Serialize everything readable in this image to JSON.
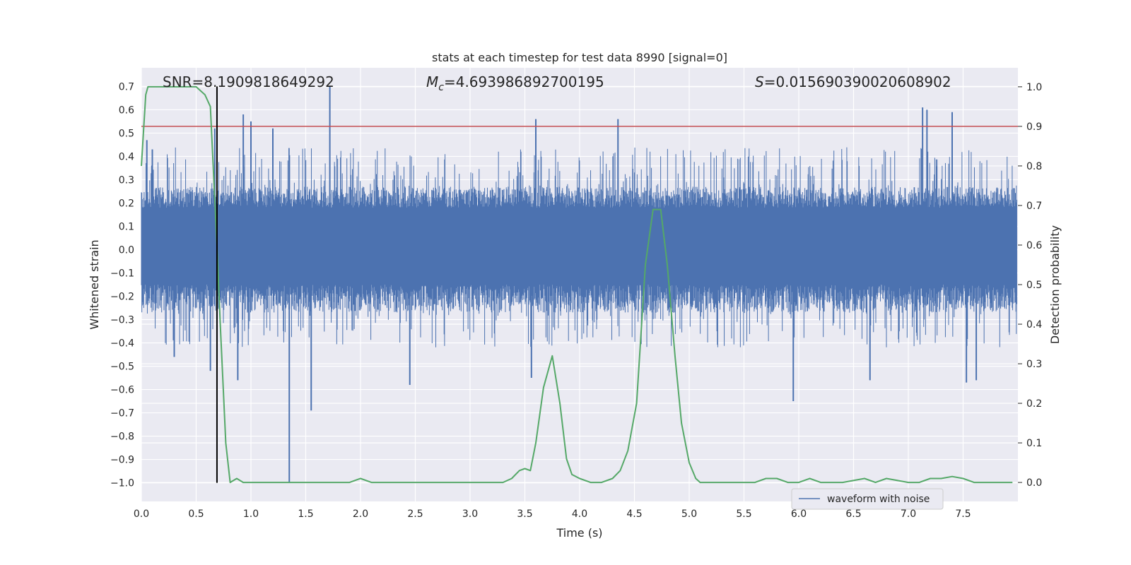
{
  "chart_data": {
    "type": "line",
    "title": "stats at each timestep for test data 8990 [signal=0]",
    "xlabel": "Time (s)",
    "ylabel_left": "Whitened strain",
    "ylabel_right": "Detection probability",
    "xlim": [
      0.0,
      8.0
    ],
    "ylim_left": [
      -1.08,
      0.78
    ],
    "ylim_right": [
      -0.048,
      1.048
    ],
    "x_ticks": [
      0.0,
      0.5,
      1.0,
      1.5,
      2.0,
      2.5,
      3.0,
      3.5,
      4.0,
      4.5,
      5.0,
      5.5,
      6.0,
      6.5,
      7.0,
      7.5
    ],
    "x_tick_labels": [
      "0.0",
      "0.5",
      "1.0",
      "1.5",
      "2.0",
      "2.5",
      "3.0",
      "3.5",
      "4.0",
      "4.5",
      "5.0",
      "5.5",
      "6.0",
      "6.5",
      "7.0",
      "7.5"
    ],
    "y_left_ticks": [
      0.7,
      0.6,
      0.5,
      0.4,
      0.3,
      0.2,
      0.1,
      0.0,
      -0.1,
      -0.2,
      -0.3,
      -0.4,
      -0.5,
      -0.6,
      -0.7,
      -0.8,
      -0.9,
      -1.0
    ],
    "y_left_tick_labels": [
      "0.7",
      "0.6",
      "0.5",
      "0.4",
      "0.3",
      "0.2",
      "0.1",
      "0.0",
      "−0.1",
      "−0.2",
      "−0.3",
      "−0.4",
      "−0.5",
      "−0.6",
      "−0.7",
      "−0.8",
      "−0.9",
      "−1.0"
    ],
    "y_right_ticks": [
      1.0,
      0.9,
      0.8,
      0.7,
      0.6,
      0.5,
      0.4,
      0.3,
      0.2,
      0.1,
      0.0
    ],
    "y_right_tick_labels": [
      "1.0",
      "0.9",
      "0.8",
      "0.7",
      "0.6",
      "0.5",
      "0.4",
      "0.3",
      "0.2",
      "0.1",
      "0.0"
    ],
    "grid": true,
    "annotations": {
      "snr": "SNR=8.1909818649292",
      "mc_symbol": "M",
      "mc_subscript": "c",
      "mc_value": "=4.693986892700195",
      "s_symbol": "S",
      "s_value": "=0.015690390020608902"
    },
    "threshold": {
      "value": 0.9,
      "axis": "right",
      "color": "#c44e52"
    },
    "vertical_marker": {
      "x": 0.69,
      "y_top": 0.7,
      "y_bottom": -1.0,
      "color": "#000000"
    },
    "series": [
      {
        "name": "waveform with noise",
        "axis": "left",
        "color": "#4c72b0",
        "legend": true,
        "band_min": -0.15,
        "band_max": 0.18,
        "spikes": [
          {
            "x": 0.05,
            "y": 0.47
          },
          {
            "x": 0.1,
            "y": 0.43
          },
          {
            "x": 0.3,
            "y": -0.46
          },
          {
            "x": 0.63,
            "y": -0.52
          },
          {
            "x": 0.67,
            "y": 0.52
          },
          {
            "x": 0.88,
            "y": -0.56
          },
          {
            "x": 0.93,
            "y": 0.58
          },
          {
            "x": 1.0,
            "y": 0.55
          },
          {
            "x": 1.2,
            "y": 0.52
          },
          {
            "x": 1.35,
            "y": -1.0
          },
          {
            "x": 1.55,
            "y": -0.69
          },
          {
            "x": 1.72,
            "y": 0.7
          },
          {
            "x": 2.45,
            "y": -0.58
          },
          {
            "x": 3.6,
            "y": 0.56
          },
          {
            "x": 3.56,
            "y": -0.55
          },
          {
            "x": 4.35,
            "y": 0.56
          },
          {
            "x": 5.95,
            "y": -0.65
          },
          {
            "x": 6.65,
            "y": -0.56
          },
          {
            "x": 7.13,
            "y": 0.61
          },
          {
            "x": 7.17,
            "y": 0.6
          },
          {
            "x": 7.4,
            "y": 0.59
          },
          {
            "x": 7.53,
            "y": -0.57
          },
          {
            "x": 7.62,
            "y": -0.56
          }
        ]
      },
      {
        "name": "",
        "axis": "right",
        "color": "#55a868",
        "legend": false,
        "x": [
          0.0,
          0.04,
          0.06,
          0.12,
          0.2,
          0.3,
          0.4,
          0.5,
          0.58,
          0.63,
          0.69,
          0.72,
          0.77,
          0.81,
          0.87,
          0.93,
          1.0,
          1.2,
          1.4,
          1.6,
          1.8,
          1.9,
          2.0,
          2.1,
          2.3,
          2.5,
          2.7,
          2.9,
          3.1,
          3.3,
          3.38,
          3.45,
          3.5,
          3.55,
          3.6,
          3.67,
          3.75,
          3.82,
          3.88,
          3.93,
          4.0,
          4.1,
          4.2,
          4.3,
          4.37,
          4.44,
          4.52,
          4.6,
          4.67,
          4.74,
          4.8,
          4.87,
          4.93,
          5.0,
          5.06,
          5.1,
          5.2,
          5.4,
          5.6,
          5.7,
          5.8,
          5.9,
          6.0,
          6.1,
          6.2,
          6.4,
          6.6,
          6.7,
          6.8,
          7.0,
          7.1,
          7.2,
          7.3,
          7.4,
          7.5,
          7.6,
          7.7,
          7.95
        ],
        "y": [
          0.8,
          0.98,
          1.0,
          1.0,
          1.0,
          1.0,
          1.0,
          1.0,
          0.98,
          0.95,
          0.6,
          0.4,
          0.1,
          0.0,
          0.01,
          0.0,
          0.0,
          0.0,
          0.0,
          0.0,
          0.0,
          0.0,
          0.01,
          0.0,
          0.0,
          0.0,
          0.0,
          0.0,
          0.0,
          0.0,
          0.01,
          0.03,
          0.035,
          0.03,
          0.1,
          0.24,
          0.32,
          0.2,
          0.06,
          0.02,
          0.01,
          0.0,
          0.0,
          0.01,
          0.03,
          0.08,
          0.2,
          0.55,
          0.69,
          0.69,
          0.55,
          0.32,
          0.15,
          0.05,
          0.01,
          0.0,
          0.0,
          0.0,
          0.0,
          0.01,
          0.01,
          0.0,
          0.0,
          0.01,
          0.0,
          0.0,
          0.01,
          0.0,
          0.01,
          0.0,
          0.0,
          0.01,
          0.01,
          0.015,
          0.01,
          0.0,
          0.0,
          0.0
        ]
      }
    ],
    "legend": {
      "location": "lower-right"
    }
  }
}
